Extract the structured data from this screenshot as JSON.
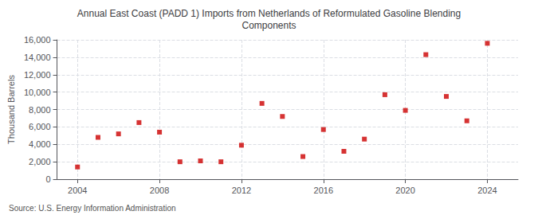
{
  "chart_data": {
    "type": "scatter",
    "title": "Annual East Coast (PADD 1) Imports from Netherlands of Reformulated Gasoline Blending\nComponents",
    "ylabel": "Thousand Barrels",
    "source": "Source: U.S. Energy Information Administration",
    "x": [
      2004,
      2005,
      2006,
      2007,
      2008,
      2009,
      2010,
      2011,
      2012,
      2013,
      2014,
      2015,
      2016,
      2017,
      2018,
      2019,
      2020,
      2021,
      2022,
      2023,
      2024
    ],
    "values": [
      1400,
      4800,
      5200,
      6500,
      5400,
      2000,
      2100,
      2000,
      3900,
      8700,
      7200,
      2600,
      5700,
      3200,
      4600,
      9700,
      7900,
      14300,
      9500,
      6700,
      15600
    ],
    "color": "#cc0000",
    "marker": "square",
    "xlim": [
      2003.0,
      2025.5
    ],
    "xticks": [
      2004,
      2008,
      2012,
      2016,
      2020,
      2024
    ],
    "ylim": [
      0,
      16000
    ],
    "yticks": [
      0,
      {
        "value": 2000,
        "label": "2,000"
      },
      {
        "value": 4000,
        "label": "4,000"
      },
      {
        "value": 6000,
        "label": "6,000"
      },
      {
        "value": 8000,
        "label": "8,000"
      },
      {
        "value": 10000,
        "label": "10,000"
      },
      {
        "value": 12000,
        "label": "12,000"
      },
      {
        "value": 14000,
        "label": "14,000"
      },
      {
        "value": 16000,
        "label": "16,000"
      }
    ],
    "grid": true
  }
}
